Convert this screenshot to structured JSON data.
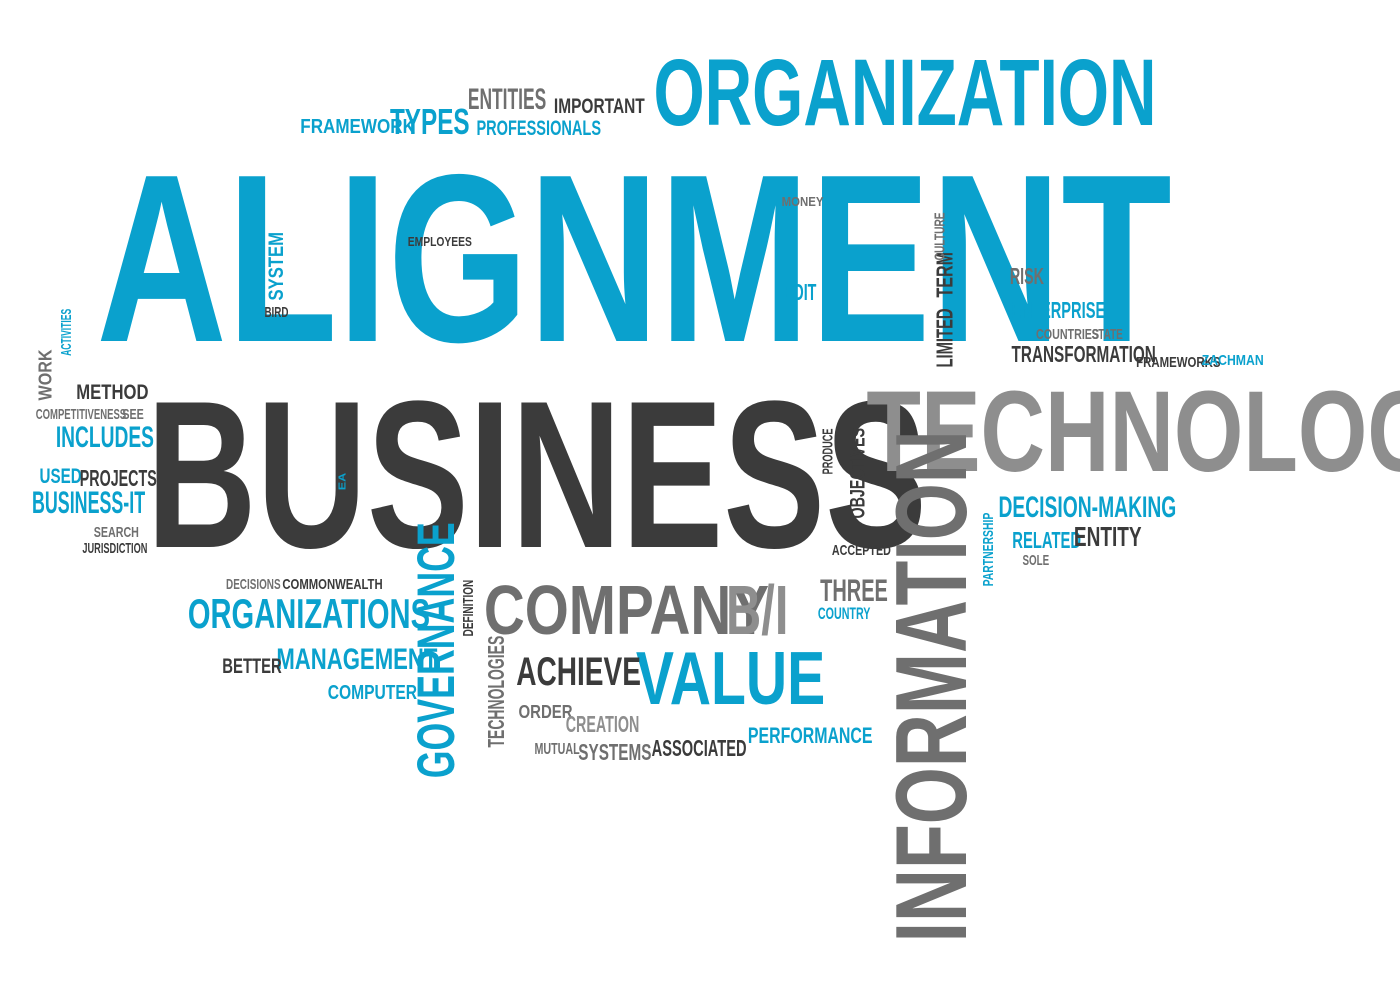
{
  "palette": {
    "blue": "#0aa1cd",
    "dark": "#3b3b3b",
    "mid": "#6f6f6f",
    "light": "#8e8e8e"
  },
  "words": [
    {
      "id": "alignment",
      "text": "ALIGNMENT",
      "color": "blue"
    },
    {
      "id": "business",
      "text": "BUSINESS",
      "color": "dark"
    },
    {
      "id": "technology",
      "text": "TECHNOLOGY",
      "color": "light"
    },
    {
      "id": "information",
      "text": "INFORMATION",
      "color": "mid"
    },
    {
      "id": "organization",
      "text": "ORGANIZATION",
      "color": "blue"
    },
    {
      "id": "company",
      "text": "COMPANY",
      "color": "mid"
    },
    {
      "id": "b-i",
      "text": "B/I",
      "color": "light"
    },
    {
      "id": "value",
      "text": "VALUE",
      "color": "blue"
    },
    {
      "id": "governance",
      "text": "GOVERNANCE",
      "color": "blue"
    },
    {
      "id": "organizations",
      "text": "ORGANIZATIONS",
      "color": "blue"
    },
    {
      "id": "management",
      "text": "MANAGEMENT",
      "color": "blue"
    },
    {
      "id": "better",
      "text": "BETTER",
      "color": "dark"
    },
    {
      "id": "computer",
      "text": "COMPUTER",
      "color": "blue"
    },
    {
      "id": "achieve",
      "text": "ACHIEVE",
      "color": "dark"
    },
    {
      "id": "order",
      "text": "ORDER",
      "color": "mid"
    },
    {
      "id": "creation",
      "text": "CREATION",
      "color": "light"
    },
    {
      "id": "mutual",
      "text": "MUTUAL",
      "color": "mid"
    },
    {
      "id": "systems",
      "text": "SYSTEMS",
      "color": "mid"
    },
    {
      "id": "associated",
      "text": "ASSOCIATED",
      "color": "dark"
    },
    {
      "id": "performance",
      "text": "PERFORMANCE",
      "color": "blue"
    },
    {
      "id": "technologies",
      "text": "TECHNOLOGIES",
      "color": "mid"
    },
    {
      "id": "definition",
      "text": "DEFINITION",
      "color": "dark"
    },
    {
      "id": "decisions",
      "text": "DECISIONS",
      "color": "mid"
    },
    {
      "id": "commonwealth",
      "text": "COMMONWEALTH",
      "color": "dark"
    },
    {
      "id": "three",
      "text": "THREE",
      "color": "mid"
    },
    {
      "id": "country",
      "text": "COUNTRY",
      "color": "blue"
    },
    {
      "id": "accepted",
      "text": "ACCEPTED",
      "color": "dark"
    },
    {
      "id": "objectives",
      "text": "OBJECTIVES",
      "color": "dark"
    },
    {
      "id": "produce",
      "text": "PRODUCE",
      "color": "dark"
    },
    {
      "id": "ea",
      "text": "EA",
      "color": "blue"
    },
    {
      "id": "decision-making",
      "text": "DECISION-MAKING",
      "color": "blue"
    },
    {
      "id": "related",
      "text": "RELATED",
      "color": "blue"
    },
    {
      "id": "entity",
      "text": "ENTITY",
      "color": "dark"
    },
    {
      "id": "partnership",
      "text": "PARTNERSHIP",
      "color": "blue"
    },
    {
      "id": "sole",
      "text": "SOLE",
      "color": "mid"
    },
    {
      "id": "framework",
      "text": "FRAMEWORK",
      "color": "blue"
    },
    {
      "id": "types",
      "text": "TYPES",
      "color": "blue"
    },
    {
      "id": "entities",
      "text": "ENTITIES",
      "color": "mid"
    },
    {
      "id": "important",
      "text": "IMPORTANT",
      "color": "dark"
    },
    {
      "id": "professionals",
      "text": "PROFESSIONALS",
      "color": "blue"
    },
    {
      "id": "money",
      "text": "MONEY",
      "color": "mid"
    },
    {
      "id": "employees",
      "text": "EMPLOYEES",
      "color": "dark"
    },
    {
      "id": "system",
      "text": "SYSTEM",
      "color": "blue"
    },
    {
      "id": "bird",
      "text": "BIRD",
      "color": "dark"
    },
    {
      "id": "edit",
      "text": "EDIT",
      "color": "blue"
    },
    {
      "id": "limited",
      "text": "LIMITED",
      "color": "dark"
    },
    {
      "id": "term",
      "text": "TERM",
      "color": "dark"
    },
    {
      "id": "culture",
      "text": "CULTURE",
      "color": "mid"
    },
    {
      "id": "risk",
      "text": "RISK",
      "color": "mid"
    },
    {
      "id": "enterprise",
      "text": "ENTERPRISE",
      "color": "blue"
    },
    {
      "id": "countries",
      "text": "COUNTRIES",
      "color": "mid"
    },
    {
      "id": "state",
      "text": "STATE",
      "color": "mid"
    },
    {
      "id": "transformation",
      "text": "TRANSFORMATION",
      "color": "dark"
    },
    {
      "id": "frameworks",
      "text": "FRAMEWORKS",
      "color": "dark"
    },
    {
      "id": "zachman",
      "text": "ZACHMAN",
      "color": "blue"
    },
    {
      "id": "activities",
      "text": "ACTIVITIES",
      "color": "blue"
    },
    {
      "id": "work",
      "text": "WORK",
      "color": "mid"
    },
    {
      "id": "method",
      "text": "METHOD",
      "color": "dark"
    },
    {
      "id": "competitiveness",
      "text": "COMPETITIVENESS",
      "color": "mid"
    },
    {
      "id": "see",
      "text": "SEE",
      "color": "mid"
    },
    {
      "id": "includes",
      "text": "INCLUDES",
      "color": "blue"
    },
    {
      "id": "used",
      "text": "USED",
      "color": "blue"
    },
    {
      "id": "projects",
      "text": "PROJECTS",
      "color": "dark"
    },
    {
      "id": "business-it",
      "text": "BUSINESS-IT",
      "color": "blue"
    },
    {
      "id": "search",
      "text": "SEARCH",
      "color": "mid"
    },
    {
      "id": "jurisdiction",
      "text": "JURISDICTION",
      "color": "dark"
    }
  ]
}
